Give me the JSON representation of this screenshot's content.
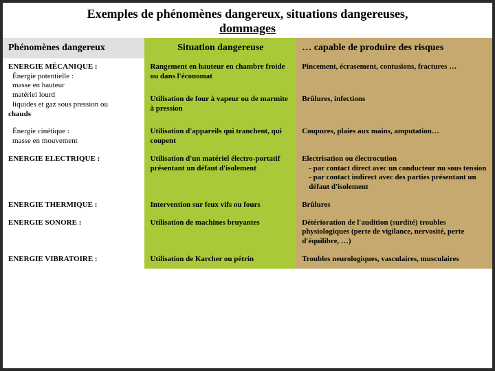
{
  "title_line1": "Exemples de phénomènes dangereux, situations dangereuses,",
  "title_line2": "dommages",
  "headers": {
    "c1": "Phénomènes dangereux",
    "c2": "Situation dangereuse",
    "c3": "… capable de produire des risques"
  },
  "rows": [
    {
      "ph_caps": "ENERGIE MÉCANIQUE :",
      "ph_sub": "Énergie potentielle :\nmasse en hauteur\nmatériel lourd\nliquides et gaz sous pression ou",
      "ph_tail": "chauds",
      "sit": "Rangement en hauteur en chambre froide ou dans l'économat",
      "risk": "Pincement, écrasement, contusions, fractures …"
    },
    {
      "ph_caps": "",
      "ph_sub": "",
      "sit": "Utilisation de four à vapeur ou de marmite à pression",
      "risk": "Brûlures, infections"
    },
    {
      "ph_caps": "",
      "ph_sub": "Énergie cinétique :\nmasse en mouvement",
      "sit": "Utilisation d'appareils qui tranchent, qui coupent",
      "risk": "Coupures, plaies aux mains, amputation…"
    },
    {
      "ph_caps": "ENERGIE ELECTRIQUE :",
      "sit": "Utilisation d'un matériel électro-portatif présentant un défaut d'isolement",
      "risk_main": "Electrisation ou électrocution",
      "risk_l1": "- par contact direct avec un conducteur nu sous tension",
      "risk_l2": "- par contact indirect avec des parties présentant un défaut d'isolement"
    },
    {
      "ph_caps": "ENERGIE THERMIQUE :",
      "sit": "Intervention sur feux vifs ou fours",
      "risk": "Brûlures"
    },
    {
      "ph_caps": "ENERGIE SONORE :",
      "sit": "Utilisation de machines bruyantes",
      "risk": "Détérioration de l'audition (surdité) troubles physiologiques (perte de vigilance, nervosité, perte d'équilibre, …)"
    },
    {
      "ph_caps": "ENERGIE VIBRATOIRE :",
      "sit": "Utilisation de Karcher ou pétrin",
      "risk": "Troubles neurologiques, vasculaires, musculaires"
    }
  ]
}
